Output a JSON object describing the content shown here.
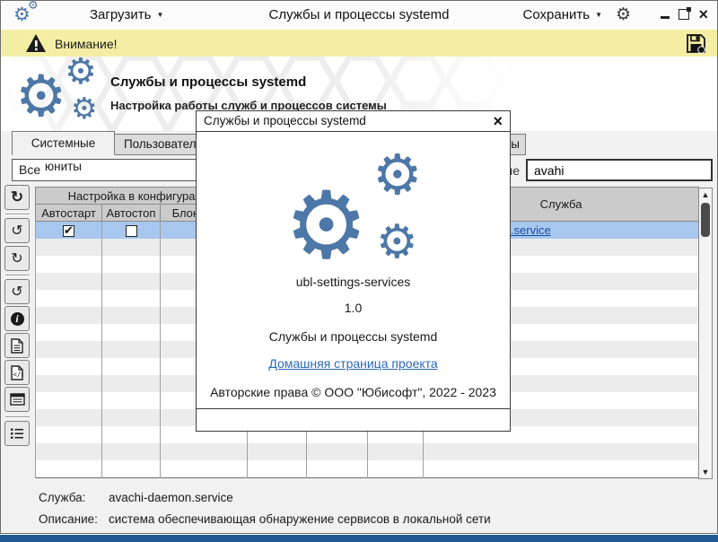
{
  "titlebar": {
    "load_label": "Загрузить",
    "title": "Службы и процессы systemd",
    "save_label": "Сохранить"
  },
  "warning": {
    "text": "Внимание!"
  },
  "banner": {
    "title": "Службы и процессы systemd",
    "subtitle": "Настройка работы служб и процессов системы"
  },
  "tabs": [
    {
      "label": "Системные юниты",
      "active": true
    },
    {
      "label": "Пользовательские юниты",
      "active": false
    },
    {
      "label": "Глобальные юниты",
      "active": false
    }
  ],
  "filter": {
    "combo_value": "Все",
    "search_label": "Название",
    "search_value": "avahi"
  },
  "toolbar": {
    "buttons": [
      {
        "name": "refresh",
        "glyph": "↻"
      },
      {
        "name": "history-restore",
        "glyph": "↺"
      },
      {
        "name": "redo",
        "glyph": "↻"
      },
      {
        "name": "undo",
        "glyph": "↺"
      },
      {
        "name": "info",
        "glyph": "i"
      },
      {
        "name": "file"
      },
      {
        "name": "file-code"
      },
      {
        "name": "journal"
      },
      {
        "name": "unit-list"
      }
    ]
  },
  "table": {
    "group_header": "Настройка в конфигурации",
    "group_header_2": "",
    "columns": [
      "Автостарт",
      "Автостоп",
      "Блокировка",
      "",
      "",
      ""
    ],
    "service_column": "Служба",
    "selected_row": {
      "autostart": true,
      "autostop": false,
      "service": "avachi-daemon.service"
    },
    "empty_row_count": 14
  },
  "details": {
    "service_label": "Служба:",
    "service_value": "avachi-daemon.service",
    "desc_label": "Описание:",
    "desc_value": "система обеспечивающая обнаружение сервисов в локальной сети"
  },
  "dialog": {
    "title": "Службы и процессы systemd",
    "close_glyph": "×",
    "app_name": "ubl-settings-services",
    "version": "1.0",
    "app_desc": "Службы и процессы systemd",
    "link": "Домашняя страница проекта",
    "copyright": "Авторские права © ООО \"Юбисофт\", 2022 - 2023"
  },
  "colors": {
    "accent_blue": "#4d77a6",
    "warning_bg": "#f4eea4",
    "selection": "#a7c7ef",
    "table_link": "#17519e",
    "dialog_link": "#2b68b8",
    "taskbar": "#205b93"
  }
}
